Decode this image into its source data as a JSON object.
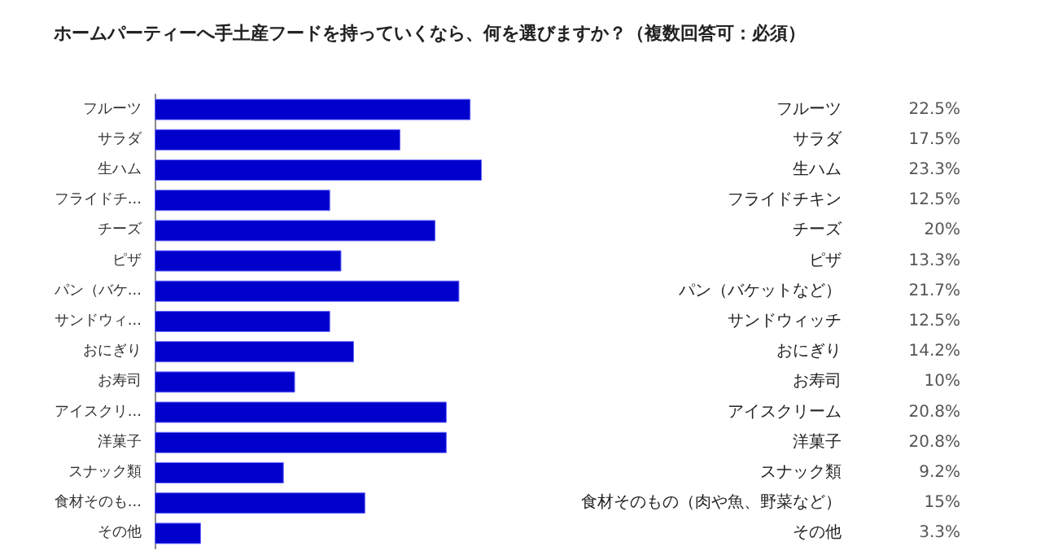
{
  "chart_data": {
    "type": "bar",
    "orientation": "horizontal",
    "title": "ホームパーティーへ手土産フードを持っていくなら、何を選びますか？（複数回答可：必須）",
    "categories": [
      "フルーツ",
      "サラダ",
      "生ハム",
      "フライドチ...",
      "チーズ",
      "ピザ",
      "パン（バケ...",
      "サンドウィ...",
      "おにぎり",
      "お寿司",
      "アイスクリ...",
      "洋菓子",
      "スナック類",
      "食材そのも...",
      "その他"
    ],
    "values": [
      22.5,
      17.5,
      23.3,
      12.5,
      20,
      13.3,
      21.7,
      12.5,
      14.2,
      10,
      20.8,
      20.8,
      9.2,
      15,
      3.3
    ],
    "value_labels": [
      "22.5%",
      "17.5%",
      "23.3%",
      "12.5%",
      "20%",
      "13.3%",
      "21.7%",
      "12.5%",
      "14.2%",
      "10%",
      "20.8%",
      "20.8%",
      "9.2%",
      "15%",
      "3.3%"
    ],
    "annotations": [
      "フルーツ",
      "サラダ",
      "生ハム",
      "フライドチキン",
      "チーズ",
      "ピザ",
      "パン（バケットなど）",
      "サンドウィッチ",
      "おにぎり",
      "お寿司",
      "アイスクリーム",
      "洋菓子",
      "スナック類",
      "食材そのもの（肉や魚、野菜など）",
      "その他"
    ],
    "color": "#0000cc"
  }
}
